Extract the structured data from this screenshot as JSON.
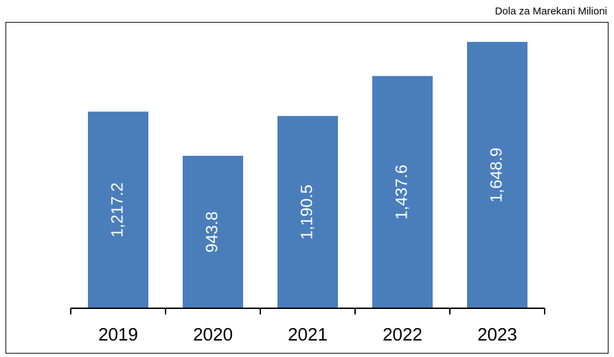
{
  "chart_data": {
    "type": "bar",
    "unit_label": "Dola za Marekani Milioni",
    "categories": [
      "2019",
      "2020",
      "2021",
      "2022",
      "2023"
    ],
    "values": [
      1217.2,
      943.8,
      1190.5,
      1437.6,
      1648.9
    ],
    "value_labels": [
      "1,217.2",
      "943.8",
      "1,190.5",
      "1,437.6",
      "1,648.9"
    ],
    "color": "#4a7ebb"
  }
}
